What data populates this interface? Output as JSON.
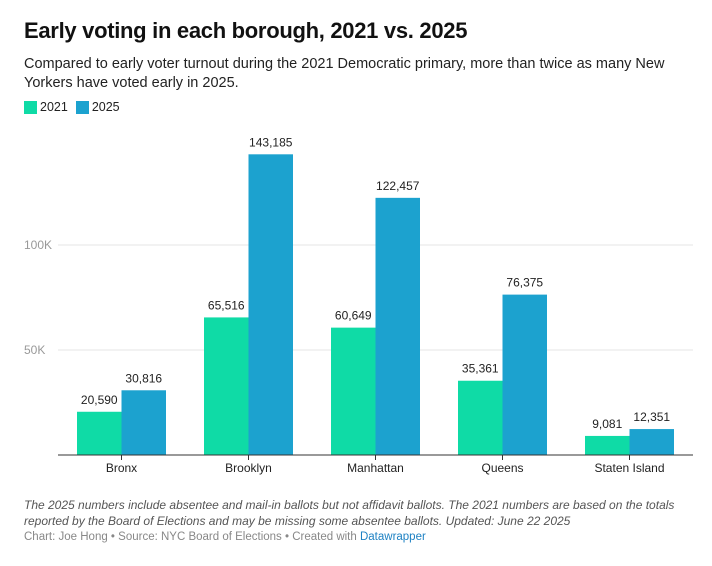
{
  "title": "Early voting in each borough, 2021 vs. 2025",
  "subtitle": "Compared to early voter turnout during the 2021 Democratic primary, more than twice as many New Yorkers have voted early in 2025.",
  "notes": "The 2025 numbers include absentee and mail-in ballots but not affidavit ballots. The 2021 numbers are based on the totals reported by the Board of Elections and may be missing some absentee ballots. Updated: June 22 2025",
  "credit": {
    "text": "Chart: Joe Hong • Source: NYC Board of Elections • Created with ",
    "link": "Datawrapper"
  },
  "chart_data": {
    "type": "bar",
    "title": "Early voting in each borough, 2021 vs. 2025",
    "categories": [
      "Bronx",
      "Brooklyn",
      "Manhattan",
      "Queens",
      "Staten Island"
    ],
    "series": [
      {
        "name": "2021",
        "color": "#0fdba6",
        "values": [
          20590,
          65516,
          60649,
          35361,
          9081
        ],
        "labels": [
          "20,590",
          "65,516",
          "60,649",
          "35,361",
          "9,081"
        ]
      },
      {
        "name": "2025",
        "color": "#1ca2cf",
        "values": [
          30816,
          143185,
          122457,
          76375,
          12351
        ],
        "labels": [
          "30,816",
          "143,185",
          "122,457",
          "76,375",
          "12,351"
        ]
      }
    ],
    "yticks": [
      {
        "value": 50000,
        "label": "50K"
      },
      {
        "value": 100000,
        "label": "100K"
      }
    ],
    "ylim": [
      0,
      150000
    ],
    "grid": true,
    "legend": "top-left"
  }
}
